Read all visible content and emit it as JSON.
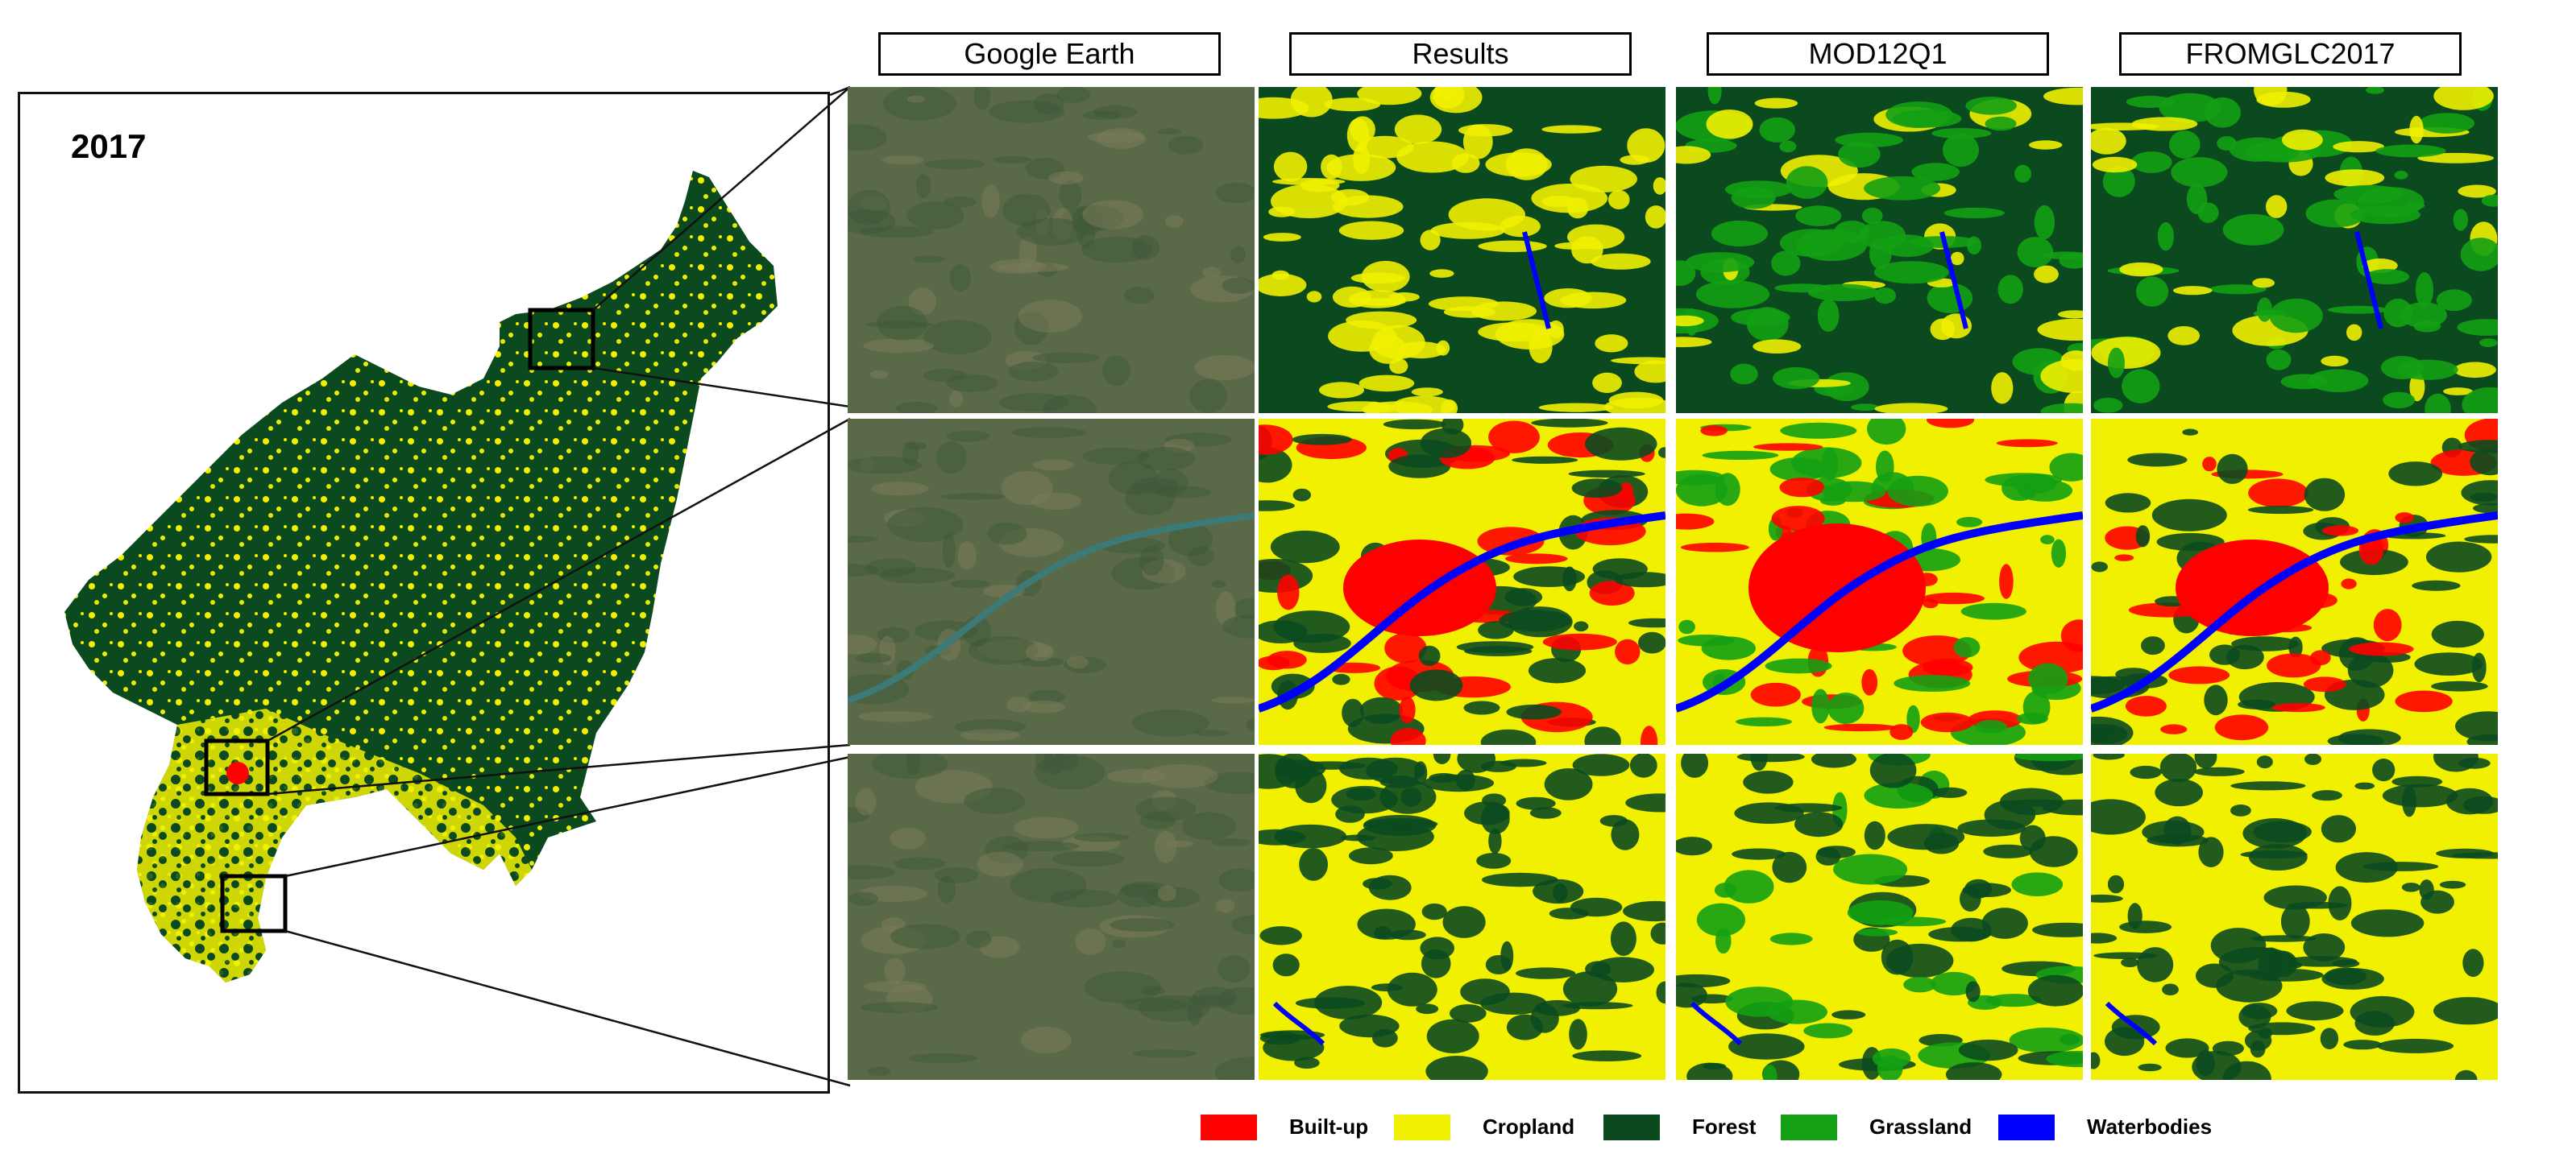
{
  "overview": {
    "year": "2017"
  },
  "columns": [
    {
      "key": "google_earth",
      "header": "Google Earth"
    },
    {
      "key": "results",
      "header": "Results"
    },
    {
      "key": "mod12q1",
      "header": "MOD12Q1"
    },
    {
      "key": "fromglc2017",
      "header": "FROMGLC2017"
    }
  ],
  "legend": [
    {
      "label": "Built-up",
      "color": "#ff0000"
    },
    {
      "label": "Cropland",
      "color": "#f0f000"
    },
    {
      "label": "Forest",
      "color": "#0b4a1f"
    },
    {
      "label": "Grassland",
      "color": "#13a013"
    },
    {
      "label": "Waterbodies",
      "color": "#0000ff"
    }
  ],
  "colors": {
    "builtup": "#ff0000",
    "cropland": "#f0f000",
    "forest": "#0b4a1f",
    "grassland": "#13a013",
    "water": "#0000ff",
    "satellite_base": "#5a6a48"
  }
}
